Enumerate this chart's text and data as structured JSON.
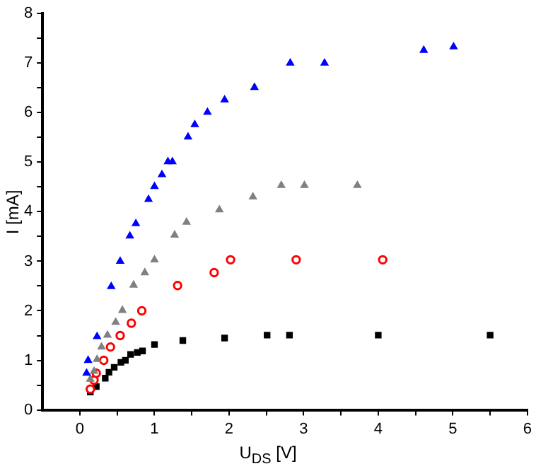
{
  "chart_data": {
    "type": "scatter",
    "xlabel": "U$_{DS}$ [V]",
    "ylabel": "I [mA]",
    "xlim": [
      -0.5,
      6
    ],
    "ylim": [
      0,
      8
    ],
    "xticks": [
      0,
      {
        "value": 0.5,
        "label": null
      },
      1,
      {
        "value": 1.5,
        "label": null
      },
      2,
      {
        "value": 2.5,
        "label": null
      },
      3,
      {
        "value": 3.5,
        "label": null
      },
      4,
      {
        "value": 4.5,
        "label": null
      },
      5,
      {
        "value": 5.5,
        "label": null
      },
      6
    ],
    "yticks": [
      0,
      {
        "value": 0.5,
        "label": null
      },
      1,
      {
        "value": 1.5,
        "label": null
      },
      2,
      {
        "value": 2.5,
        "label": null
      },
      3,
      {
        "value": 3.5,
        "label": null
      },
      4,
      {
        "value": 4.5,
        "label": null
      },
      5,
      {
        "value": 5.5,
        "label": null
      },
      6,
      {
        "value": 6.5,
        "label": null
      },
      7,
      {
        "value": 7.5,
        "label": null
      },
      8
    ],
    "grid": false,
    "legend": false,
    "series": [
      {
        "color": "#0000ff",
        "marker": "triangle",
        "x": [
          0.09,
          0.11,
          0.23,
          0.42,
          0.54,
          0.67,
          0.75,
          0.92,
          1.0,
          1.1,
          1.18,
          1.24,
          1.45,
          1.54,
          1.71,
          1.94,
          2.34,
          2.82,
          3.28,
          4.61,
          5.01
        ],
        "values": [
          0.74,
          1.0,
          1.48,
          2.49,
          3.0,
          3.51,
          3.76,
          4.25,
          4.51,
          4.75,
          5.01,
          5.01,
          5.51,
          5.76,
          6.01,
          6.26,
          6.51,
          7.0,
          7.0,
          7.26,
          7.33
        ]
      },
      {
        "color": "#808080",
        "marker": "triangle",
        "x": [
          0.14,
          0.19,
          0.23,
          0.29,
          0.37,
          0.48,
          0.57,
          0.72,
          0.87,
          1.0,
          1.27,
          1.43,
          1.87,
          2.32,
          2.7,
          3.01,
          3.72
        ],
        "values": [
          0.62,
          0.78,
          1.02,
          1.27,
          1.51,
          1.77,
          2.01,
          2.52,
          2.77,
          3.03,
          3.53,
          3.79,
          4.04,
          4.3,
          4.53,
          4.53,
          4.53
        ]
      },
      {
        "color": "#ff0000",
        "marker": "circle",
        "x": [
          0.14,
          0.19,
          0.22,
          0.32,
          0.41,
          0.54,
          0.69,
          0.83,
          1.31,
          1.8,
          2.02,
          2.9,
          4.06
        ],
        "values": [
          0.42,
          0.6,
          0.74,
          1.0,
          1.27,
          1.5,
          1.75,
          2.0,
          2.51,
          2.77,
          3.03,
          3.03,
          3.03
        ]
      },
      {
        "color": "#000000",
        "marker": "square",
        "x": [
          0.14,
          0.22,
          0.34,
          0.39,
          0.46,
          0.55,
          0.61,
          0.68,
          0.77,
          0.84,
          1.0,
          1.38,
          1.94,
          2.51,
          2.81,
          4.0,
          5.5
        ],
        "values": [
          0.36,
          0.47,
          0.64,
          0.76,
          0.86,
          0.96,
          1.0,
          1.12,
          1.16,
          1.19,
          1.32,
          1.4,
          1.45,
          1.51,
          1.51,
          1.51,
          1.51
        ]
      }
    ]
  }
}
